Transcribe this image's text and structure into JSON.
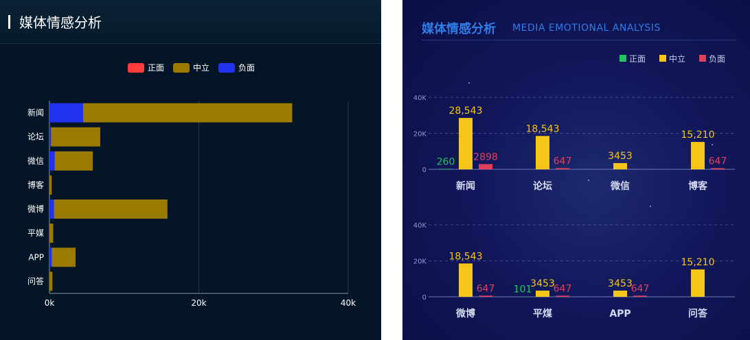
{
  "left": {
    "title": "媒体情感分析",
    "legend": [
      {
        "name": "正面",
        "color": "#ff3b3b"
      },
      {
        "name": "中立",
        "color": "#9b7a00"
      },
      {
        "name": "负面",
        "color": "#2233ee"
      }
    ]
  },
  "right": {
    "title": "媒体情感分析",
    "subtitle": "MEDIA EMOTIONAL ANALYSIS",
    "legend": [
      {
        "name": "正面",
        "color": "#22c55e"
      },
      {
        "name": "中立",
        "color": "#f5c518"
      },
      {
        "name": "负面",
        "color": "#e0405a"
      }
    ]
  },
  "chart_data": [
    {
      "type": "bar",
      "orientation": "horizontal",
      "stacked": true,
      "categories": [
        "新闻",
        "论坛",
        "微信",
        "博客",
        "微博",
        "平媒",
        "APP",
        "问答"
      ],
      "series": [
        {
          "name": "正面",
          "values": [
            0,
            0,
            0,
            0,
            0,
            0,
            0,
            0
          ]
        },
        {
          "name": "中立",
          "values": [
            28000,
            6600,
            5100,
            300,
            15200,
            500,
            3200,
            400
          ]
        },
        {
          "name": "负面",
          "values": [
            4500,
            200,
            700,
            0,
            600,
            0,
            300,
            0
          ]
        }
      ],
      "xticks": [
        "0k",
        "20k",
        "40k"
      ],
      "xlim": [
        0,
        40000
      ],
      "grid": true,
      "legend_position": "top-center"
    },
    {
      "type": "bar",
      "categories": [
        "新闻",
        "论坛",
        "微信",
        "博客"
      ],
      "series": [
        {
          "name": "正面",
          "values": [
            260,
            null,
            null,
            null
          ]
        },
        {
          "name": "中立",
          "values": [
            28543,
            18543,
            3453,
            15210
          ]
        },
        {
          "name": "负面",
          "values": [
            2898,
            647,
            null,
            647
          ]
        }
      ],
      "labels": [
        [
          "260",
          "28,543",
          "2898"
        ],
        [
          null,
          "18,543",
          "647"
        ],
        [
          null,
          "3453",
          null
        ],
        [
          null,
          "15,210",
          "647"
        ]
      ],
      "yticks": [
        "0",
        "20K",
        "40K"
      ],
      "ylim": [
        0,
        40000
      ],
      "grid": true,
      "legend_position": "top-right"
    },
    {
      "type": "bar",
      "categories": [
        "微博",
        "平煤",
        "APP",
        "问答"
      ],
      "series": [
        {
          "name": "正面",
          "values": [
            null,
            101,
            null,
            null
          ]
        },
        {
          "name": "中立",
          "values": [
            18543,
            3453,
            3453,
            15210
          ]
        },
        {
          "name": "负面",
          "values": [
            647,
            647,
            647,
            null
          ]
        }
      ],
      "labels": [
        [
          null,
          "18,543",
          "647"
        ],
        [
          "101",
          "3453",
          "647"
        ],
        [
          null,
          "3453",
          "647"
        ],
        [
          null,
          "15,210",
          null
        ]
      ],
      "yticks": [
        "0",
        "20K",
        "40K"
      ],
      "ylim": [
        0,
        40000
      ],
      "grid": true
    }
  ]
}
